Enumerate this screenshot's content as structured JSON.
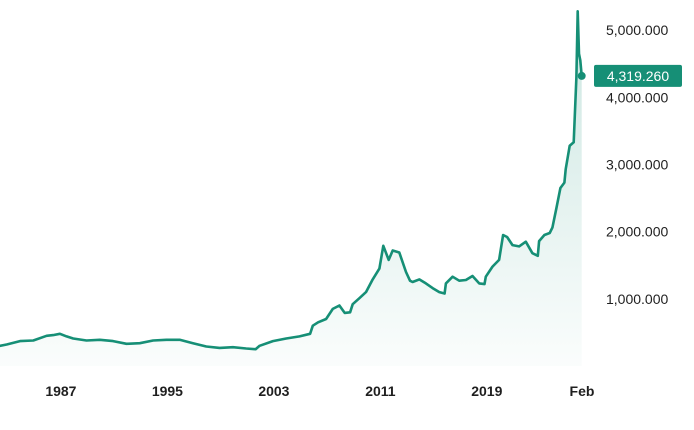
{
  "chart_data": {
    "type": "area",
    "title": "",
    "xlabel": "",
    "ylabel": "",
    "x_tick_labels": [
      "1987",
      "1995",
      "2003",
      "2011",
      "2019",
      "Feb"
    ],
    "y_tick_labels": [
      "1,000.000",
      "2,000.000",
      "3,000.000",
      "4,000.000",
      "5,000.000"
    ],
    "y_ticks": [
      1000000,
      2000000,
      3000000,
      4000000,
      5000000
    ],
    "ylim": [
      0,
      5300000
    ],
    "xlim": [
      1982.5,
      2026.6
    ],
    "last_value_label": "4,319.260",
    "last_value": 4319260,
    "line_color": "#168f76",
    "fill_color": "#168f76",
    "series": [
      {
        "x": [
          1982.5,
          1983,
          1984,
          1985,
          1986,
          1986.5,
          1987,
          1987.5,
          1988,
          1989,
          1990,
          1991,
          1992,
          1993,
          1994,
          1995,
          1996,
          1997,
          1998,
          1999,
          2000,
          2001,
          2001.7,
          2002,
          2003,
          2004,
          2005,
          2005.8,
          2006,
          2006.4,
          2007,
          2007.5,
          2008,
          2008.4,
          2008.8,
          2009,
          2009.5,
          2010,
          2010.5,
          2011,
          2011.3,
          2011.7,
          2012,
          2012.5,
          2013,
          2013.3,
          2013.5,
          2014,
          2014.5,
          2015,
          2015.5,
          2015.9,
          2016,
          2016.5,
          2017,
          2017.5,
          2018,
          2018.5,
          2018.9,
          2019,
          2019.5,
          2020,
          2020.3,
          2020.6,
          2021,
          2021.5,
          2022,
          2022.5,
          2022.9,
          2023,
          2023.4,
          2023.8,
          2024,
          2024.3,
          2024.6,
          2024.9,
          2025,
          2025.3,
          2025.6,
          2025.8,
          2025.9,
          2026,
          2026.1,
          2026.2
        ],
        "values": [
          300000,
          320000,
          370000,
          380000,
          450000,
          460000,
          480000,
          440000,
          410000,
          380000,
          390000,
          370000,
          330000,
          340000,
          380000,
          390000,
          390000,
          340000,
          290000,
          270000,
          280000,
          260000,
          250000,
          300000,
          370000,
          410000,
          440000,
          480000,
          600000,
          650000,
          700000,
          850000,
          900000,
          790000,
          800000,
          920000,
          1010000,
          1100000,
          1290000,
          1450000,
          1790000,
          1580000,
          1720000,
          1690000,
          1400000,
          1270000,
          1250000,
          1290000,
          1230000,
          1160000,
          1100000,
          1080000,
          1230000,
          1330000,
          1270000,
          1280000,
          1340000,
          1230000,
          1220000,
          1330000,
          1480000,
          1580000,
          1950000,
          1920000,
          1800000,
          1780000,
          1850000,
          1680000,
          1640000,
          1860000,
          1950000,
          1980000,
          2060000,
          2350000,
          2650000,
          2730000,
          2930000,
          3280000,
          3330000,
          4300000,
          5280000,
          4650000,
          4550000,
          4319260
        ]
      }
    ]
  }
}
